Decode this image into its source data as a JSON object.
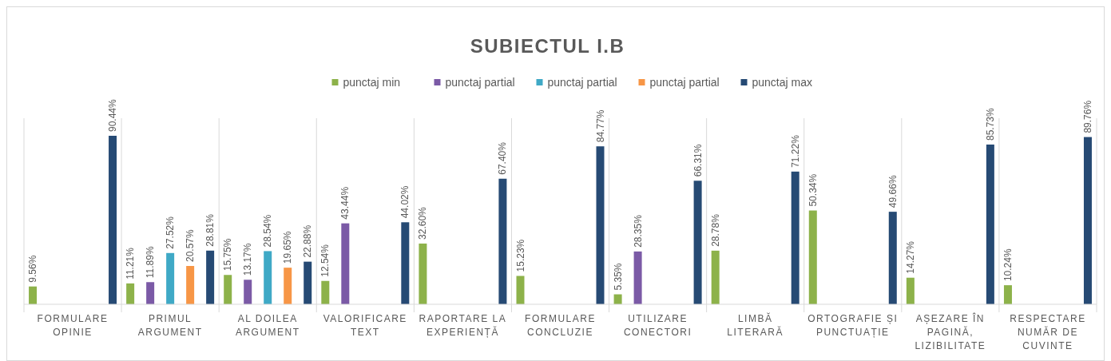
{
  "chart_data": {
    "type": "bar",
    "title": "SUBIECTUL I.B",
    "legend": "top",
    "categories": [
      "FORMULARE OPINIE",
      "PRIMUL ARGUMENT",
      "AL DOILEA ARGUMENT",
      "VALORIFICARE TEXT",
      "RAPORTARE LA EXPERIENȚĂ",
      "FORMULARE CONCLUZIE",
      "UTILIZARE CONECTORI",
      "LIMBĂ LITERARĂ",
      "ORTOGRAFIE ȘI PUNCTUAȚIE",
      "AȘEZARE ÎN PAGINĂ, LIZIBILITATE",
      "RESPECTARE NUMĂR DE CUVINTE"
    ],
    "series": [
      {
        "name": "punctaj min",
        "color": "#8db24a",
        "values": [
          9.56,
          11.21,
          15.75,
          12.54,
          32.6,
          15.23,
          5.35,
          28.78,
          50.34,
          14.27,
          10.24
        ],
        "value_labels": [
          "9.56%",
          "11.21%",
          "15.75%",
          "12.54%",
          "32.60%",
          "15.23%",
          "5.35%",
          "28.78%",
          "50.34%",
          "14.27%",
          "10.24%"
        ]
      },
      {
        "name": "punctaj partial",
        "color": "#7b5aa6",
        "values": [
          null,
          11.89,
          13.17,
          43.44,
          null,
          null,
          28.35,
          null,
          null,
          null,
          null
        ],
        "value_labels": [
          null,
          "11.89%",
          "13.17%",
          "43.44%",
          null,
          null,
          "28.35%",
          null,
          null,
          null,
          null
        ]
      },
      {
        "name": "punctaj partial",
        "color": "#3fa9c6",
        "values": [
          null,
          27.52,
          28.54,
          null,
          null,
          null,
          null,
          null,
          null,
          null,
          null
        ],
        "value_labels": [
          null,
          "27.52%",
          "28.54%",
          null,
          null,
          null,
          null,
          null,
          null,
          null,
          null
        ]
      },
      {
        "name": "punctaj partial",
        "color": "#f79646",
        "values": [
          null,
          20.57,
          19.65,
          null,
          null,
          null,
          null,
          null,
          null,
          null,
          null
        ],
        "value_labels": [
          null,
          "20.57%",
          "19.65%",
          null,
          null,
          null,
          null,
          null,
          null,
          null,
          null
        ]
      },
      {
        "name": "punctaj max",
        "color": "#264a74",
        "values": [
          90.44,
          28.81,
          22.88,
          44.02,
          67.4,
          84.77,
          66.31,
          71.22,
          49.66,
          85.73,
          89.76
        ],
        "value_labels": [
          "90.44%",
          "28.81%",
          "22.88%",
          "44.02%",
          "67.40%",
          "84.77%",
          "66.31%",
          "71.22%",
          "49.66%",
          "85.73%",
          "89.76%"
        ]
      }
    ]
  }
}
